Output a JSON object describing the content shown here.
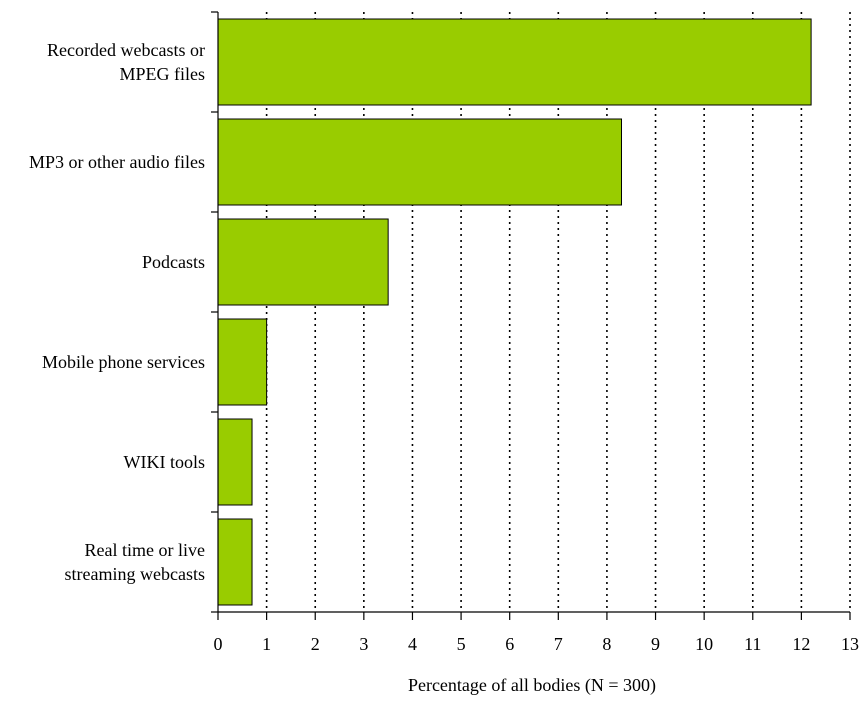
{
  "chart_data": {
    "type": "bar",
    "orientation": "horizontal",
    "categories": [
      [
        "Recorded webcasts or",
        "MPEG files"
      ],
      [
        "MP3 or other audio files"
      ],
      [
        "Podcasts"
      ],
      [
        "Mobile phone services"
      ],
      [
        "WIKI tools"
      ],
      [
        "Real time or live",
        "streaming webcasts"
      ]
    ],
    "values": [
      12.2,
      8.3,
      3.5,
      1.0,
      0.7,
      0.7
    ],
    "xlim": [
      0,
      13
    ],
    "ticks": [
      "0",
      "1",
      "2",
      "3",
      "4",
      "5",
      "6",
      "7",
      "8",
      "9",
      "10",
      "11",
      "12",
      "13"
    ],
    "xlabel": "Percentage of all bodies (N = 300)",
    "grid": "vertical dotted",
    "colors": {
      "bar_fill": "#99CC00",
      "bar_stroke": "#000000",
      "grid": "#000000"
    }
  }
}
